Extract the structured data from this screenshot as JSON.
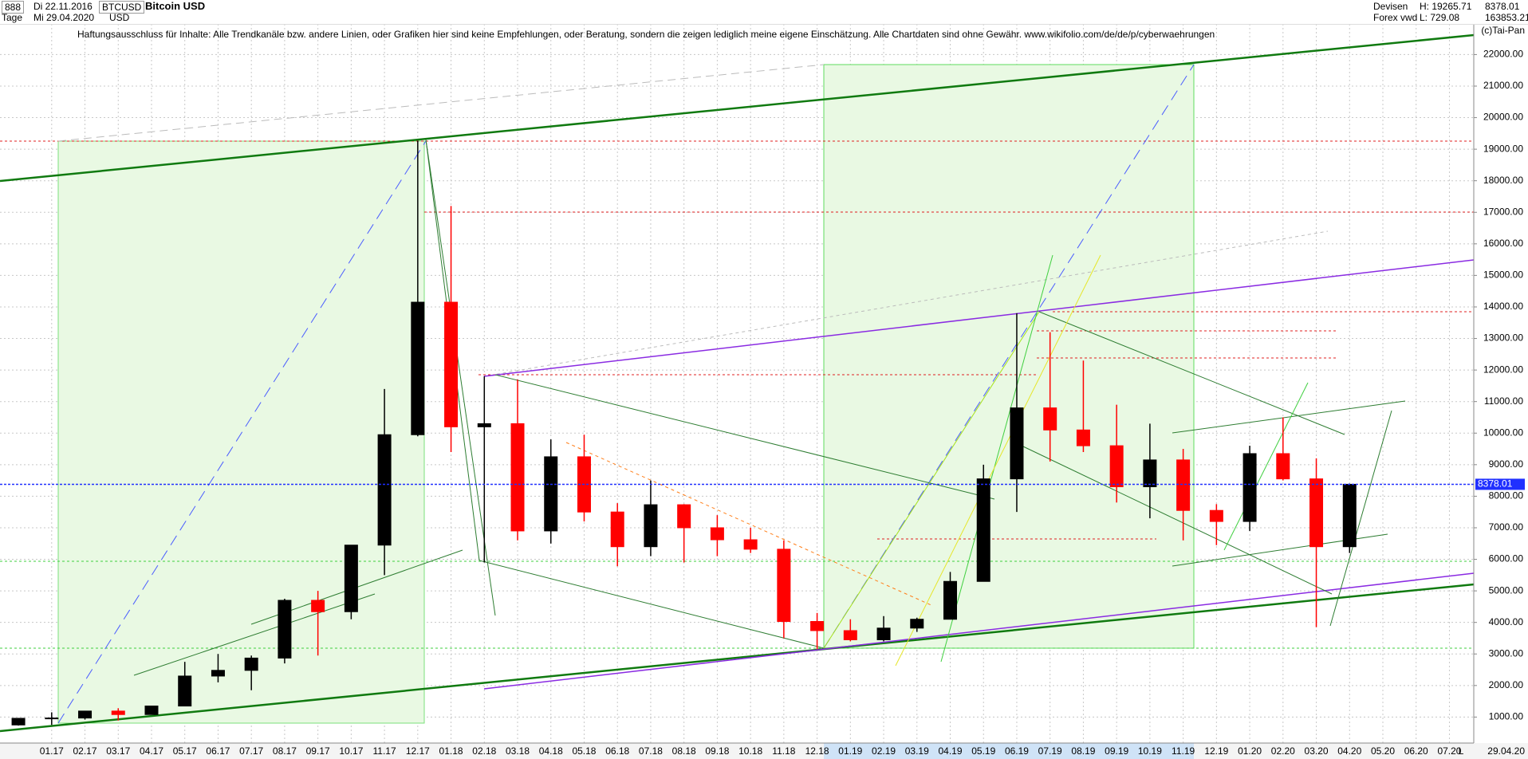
{
  "header": {
    "code": "888",
    "unit": "Tage",
    "start_date": "Di 22.11.2016",
    "end_date": "Mi 29.04.2020",
    "symbol": "BTCUSD",
    "currency": "USD",
    "title": "Bitcoin USD",
    "market": "Devisen",
    "source": "Forex vwd",
    "high": "H: 19265.71",
    "low": "L: 729.08",
    "last": "8378.01",
    "volume": "163853.21",
    "disclaimer": "Haftungsausschluss für Inhalte: Alle Trendkanäle bzw. andere Linien, oder Grafiken hier sind keine Empfehlungen, oder Beratung, sondern die zeigen lediglich meine eigene Einschätzung. Alle Chartdaten sind ohne Gewähr.  www.wikifolio.com/de/de/p/cyberwaehrungen",
    "copyright": "(c)Tai-Pan",
    "axis_end": "L",
    "last_date_label": "29.04.20"
  },
  "chart_data": {
    "type": "candlestick",
    "categories": [
      null,
      "01.17",
      "02.17",
      "03.17",
      "04.17",
      "05.17",
      "06.17",
      "07.17",
      "08.17",
      "09.17",
      "10.17",
      "11.17",
      "12.17",
      "01.18",
      "02.18",
      "03.18",
      "04.18",
      "05.18",
      "06.18",
      "07.18",
      "08.18",
      "09.18",
      "10.18",
      "11.18",
      "12.18",
      "01.19",
      "02.19",
      "03.19",
      "04.19",
      "05.19",
      "06.19",
      "07.19",
      "08.19",
      "09.19",
      "10.19",
      "11.19",
      "12.19",
      "01.20",
      "02.20",
      "03.20",
      "04.20",
      "05.20",
      "06.20",
      "07.20"
    ],
    "open": [
      750,
      960,
      970,
      1190,
      1080,
      1350,
      2300,
      2480,
      2870,
      4700,
      4340,
      6450,
      9950,
      14150,
      10200,
      10300,
      6900,
      9250,
      7500,
      6400,
      7730,
      7000,
      6620,
      6320,
      4030,
      3740,
      3450,
      3820,
      4100,
      5300,
      8550,
      10800,
      10100,
      9600,
      8300,
      9150,
      7550,
      7200,
      9350,
      8550,
      6400,
      null,
      null,
      null
    ],
    "high": [
      970,
      1150,
      1200,
      1280,
      1350,
      2750,
      3000,
      2950,
      4750,
      5000,
      6450,
      11400,
      19265.71,
      17200,
      11800,
      11700,
      9800,
      9950,
      7780,
      8500,
      7750,
      7400,
      7000,
      6600,
      4300,
      4100,
      4200,
      4150,
      5600,
      9000,
      13800,
      13200,
      12300,
      10900,
      10300,
      9500,
      7750,
      9600,
      10500,
      9200,
      8400,
      null,
      null,
      null
    ],
    "low": [
      729.08,
      750,
      920,
      890,
      1080,
      1350,
      2100,
      1850,
      2700,
      2950,
      4100,
      5500,
      9900,
      9400,
      5900,
      6600,
      6500,
      7200,
      5780,
      6100,
      5900,
      6100,
      6200,
      3500,
      3150,
      3400,
      3400,
      3700,
      4100,
      5300,
      7500,
      9100,
      9400,
      7800,
      7300,
      6600,
      6450,
      6900,
      8500,
      3850,
      6200,
      null,
      null,
      null
    ],
    "close": [
      960,
      970,
      1190,
      1080,
      1350,
      2300,
      2480,
      2870,
      4700,
      4340,
      6450,
      9950,
      14150,
      10200,
      10300,
      6900,
      9250,
      7500,
      6400,
      7730,
      7000,
      6620,
      6320,
      4030,
      3740,
      3450,
      3820,
      4100,
      5300,
      8550,
      10800,
      10100,
      9600,
      8300,
      9150,
      7550,
      7200,
      9350,
      8550,
      6400,
      8378.01,
      null,
      null,
      null
    ],
    "up_color": "#000000",
    "down_color": "#ff0000",
    "current_price": {
      "value": 8378.01,
      "label": "8378.01"
    },
    "ylim": [
      176,
      23729
    ],
    "yticks": [
      {
        "value": 1000,
        "label": "1000.00"
      },
      {
        "value": 2000,
        "label": "2000.00"
      },
      {
        "value": 3000,
        "label": "3000.00"
      },
      {
        "value": 4000,
        "label": "4000.00"
      },
      {
        "value": 5000,
        "label": "5000.00"
      },
      {
        "value": 6000,
        "label": "6000.00"
      },
      {
        "value": 7000,
        "label": "7000.00"
      },
      {
        "value": 8000,
        "label": "8000.00"
      },
      {
        "value": 9000,
        "label": "9000.00"
      },
      {
        "value": 10000,
        "label": "10000.00"
      },
      {
        "value": 11000,
        "label": "11000.00"
      },
      {
        "value": 12000,
        "label": "12000.00"
      },
      {
        "value": 13000,
        "label": "13000.00"
      },
      {
        "value": 14000,
        "label": "14000.00"
      },
      {
        "value": 15000,
        "label": "15000.00"
      },
      {
        "value": 16000,
        "label": "16000.00"
      },
      {
        "value": 17000,
        "label": "17000.00"
      },
      {
        "value": 18000,
        "label": "18000.00"
      },
      {
        "value": 19000,
        "label": "19000.00"
      },
      {
        "value": 20000,
        "label": "20000.00"
      },
      {
        "value": 21000,
        "label": "21000.00"
      },
      {
        "value": 22000,
        "label": "22000.00"
      }
    ],
    "grid": true
  }
}
